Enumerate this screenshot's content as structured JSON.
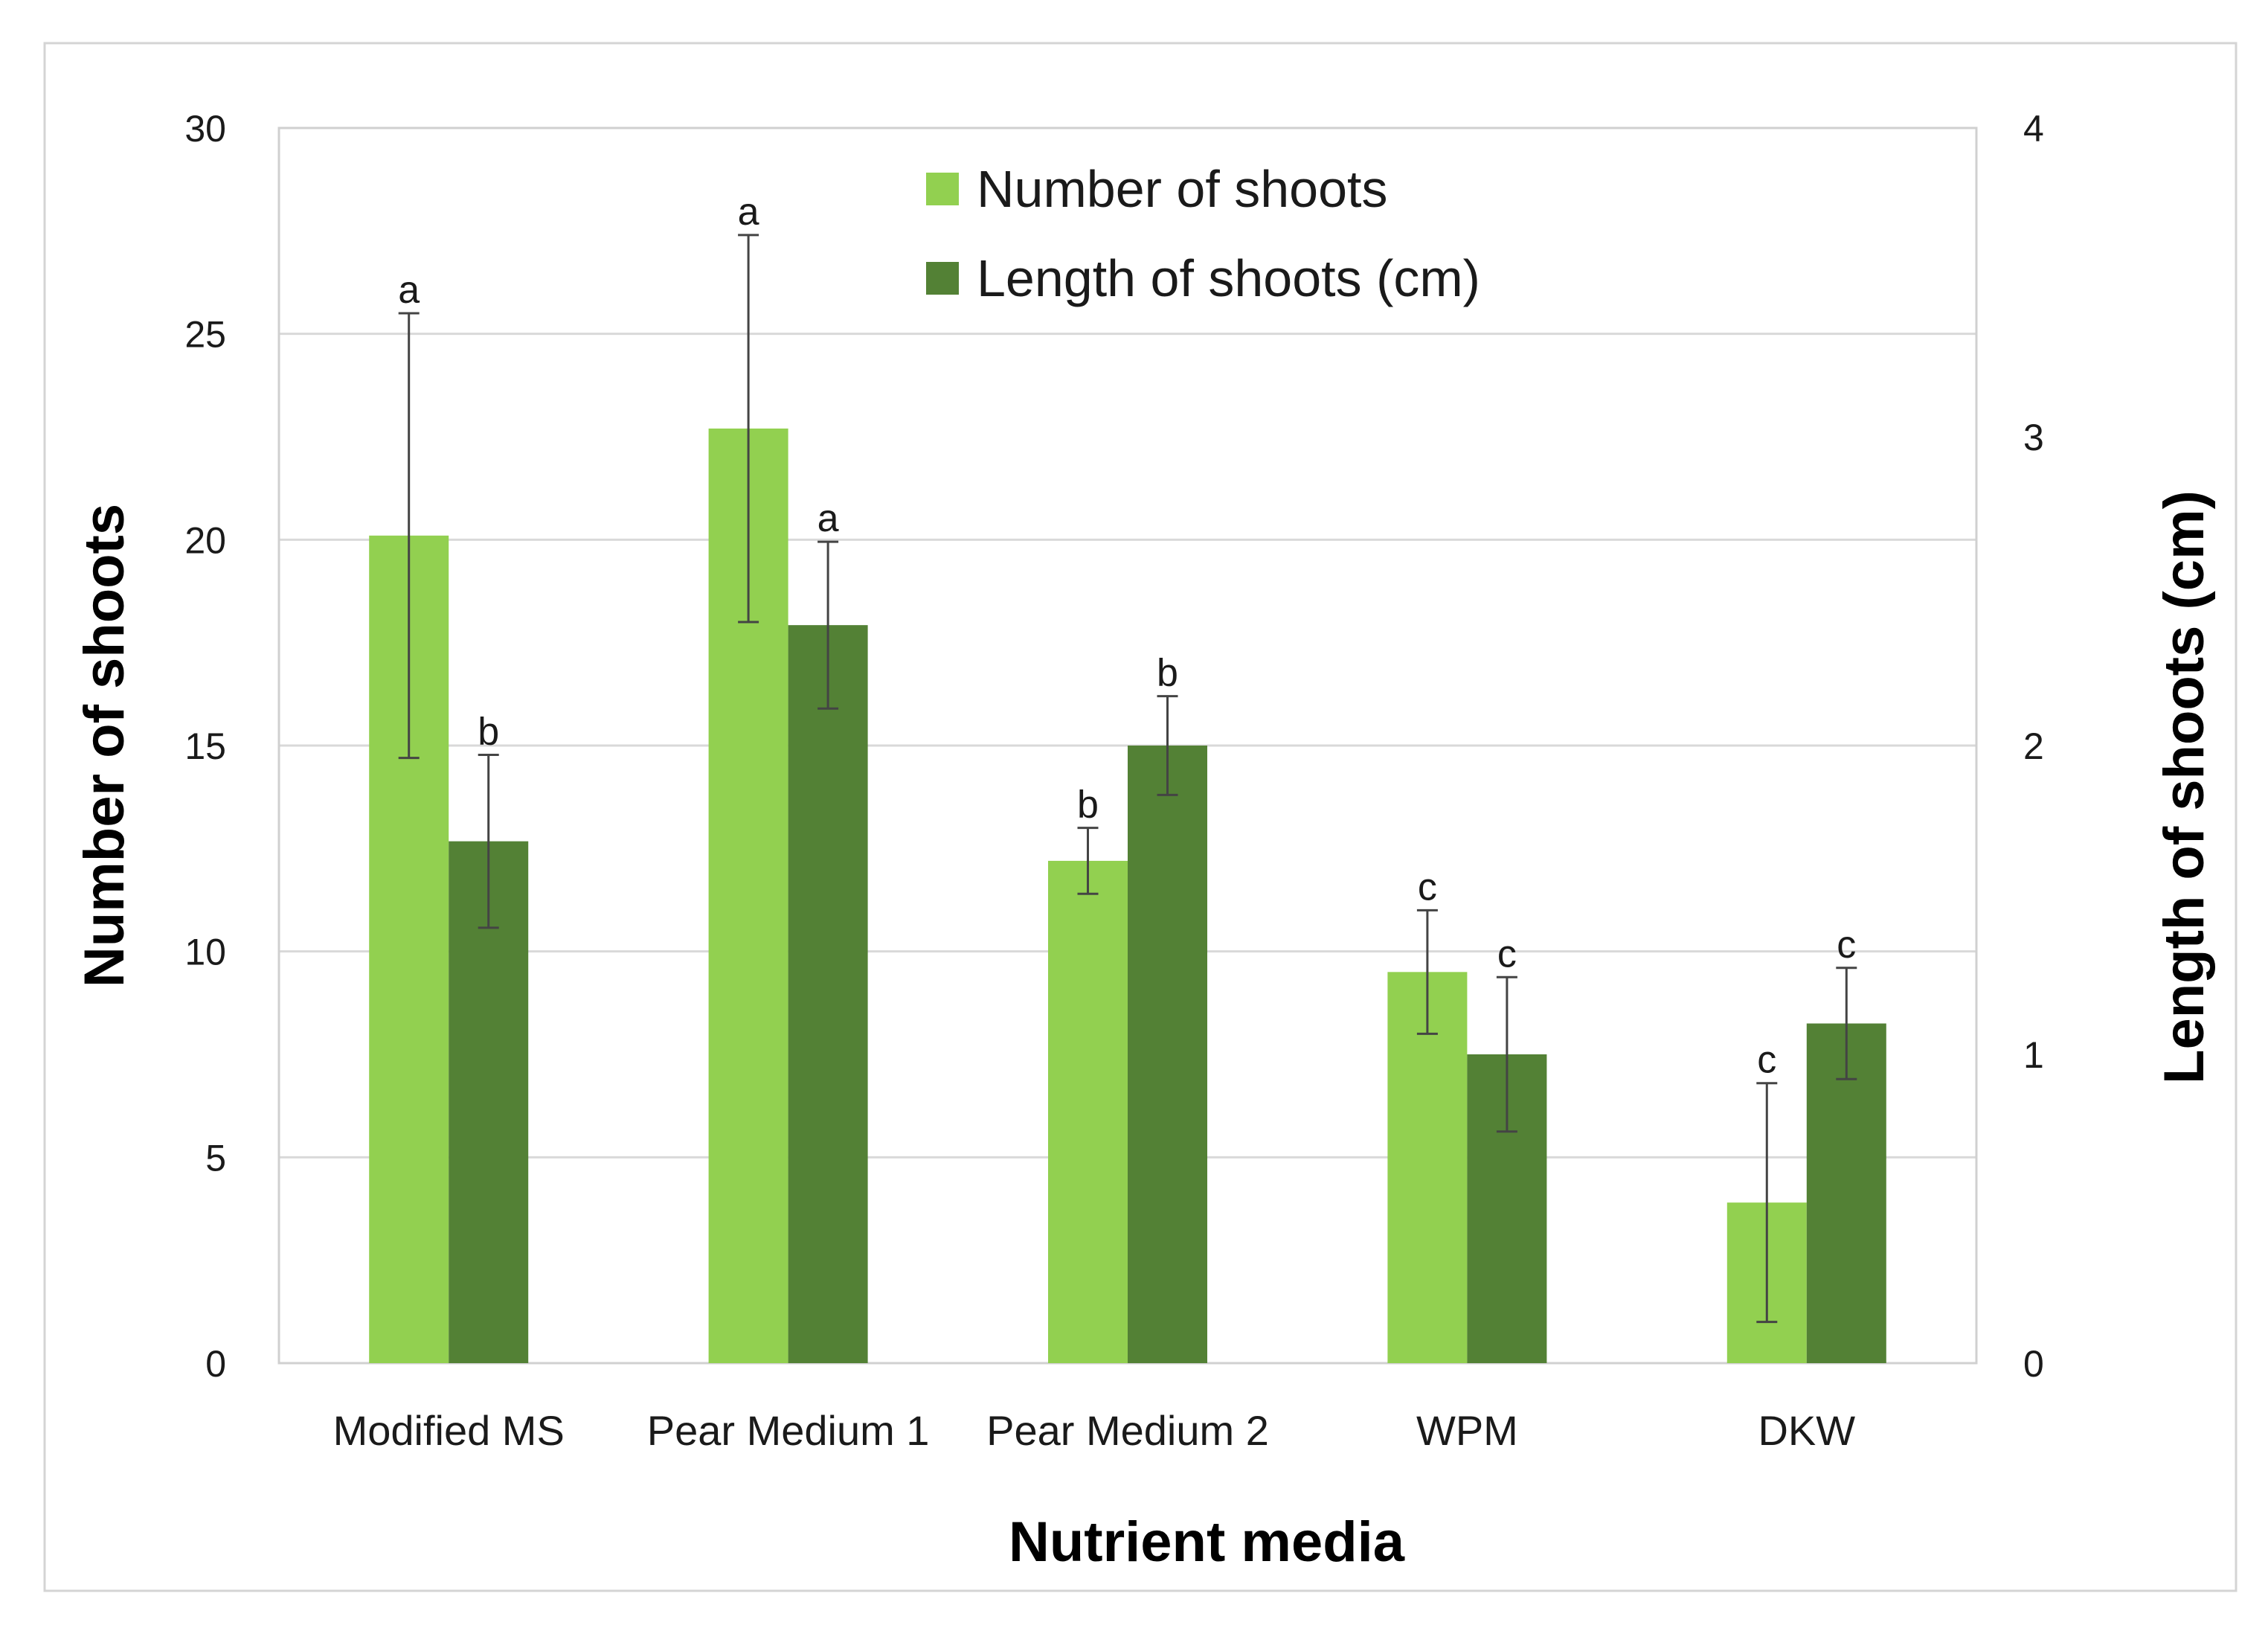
{
  "chart_data": {
    "type": "bar",
    "xlabel": "Nutrient media",
    "ylabel": "Number of shoots",
    "y2label": "Length of shoots (cm)",
    "categories": [
      "Modified MS",
      "Pear Medium 1",
      "Pear Medium 2",
      "WPM",
      "DKW"
    ],
    "ylim": [
      0,
      30
    ],
    "y2lim": [
      0,
      4
    ],
    "yticks": [
      "0",
      "5",
      "10",
      "15",
      "20",
      "25",
      "30"
    ],
    "y2ticks": [
      "0",
      "1",
      "2",
      "3",
      "4"
    ],
    "grid": true,
    "legend_position": "top-center",
    "series": [
      {
        "name": "Number of shoots",
        "axis": "left",
        "color": "#92d050",
        "values": [
          20.1,
          22.7,
          12.2,
          9.5,
          3.9
        ],
        "errors": [
          5.4,
          4.7,
          0.8,
          1.5,
          2.9
        ],
        "letters": [
          "a",
          "a",
          "b",
          "c",
          "c"
        ]
      },
      {
        "name": "Length of shoots (cm)",
        "axis": "right",
        "color": "#538135",
        "values": [
          1.69,
          2.39,
          2.0,
          1.0,
          1.1
        ],
        "errors": [
          0.28,
          0.27,
          0.16,
          0.25,
          0.18
        ],
        "letters": [
          "b",
          "a",
          "b",
          "c",
          "c"
        ]
      }
    ]
  }
}
